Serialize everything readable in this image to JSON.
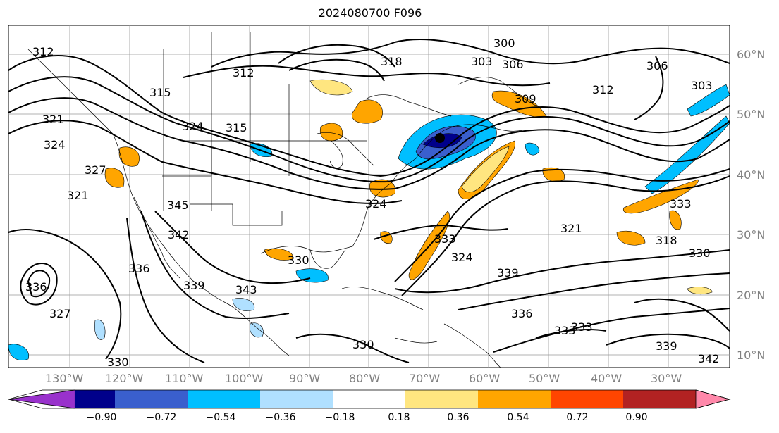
{
  "title": "2024080700 F096",
  "map": {
    "lon_labels": [
      "130°W",
      "120°W",
      "110°W",
      "100°W",
      "90°W",
      "80°W",
      "70°W",
      "60°W",
      "50°W",
      "40°W",
      "30°W"
    ],
    "lat_labels": [
      "60°N",
      "50°N",
      "40°N",
      "30°N",
      "20°N",
      "10°N"
    ],
    "contour_labels": [
      "312",
      "315",
      "318",
      "300",
      "306",
      "303",
      "309",
      "312",
      "306",
      "303",
      "321",
      "324",
      "327",
      "321",
      "315",
      "324",
      "312",
      "345",
      "342",
      "336",
      "339",
      "343",
      "330",
      "336",
      "333",
      "330",
      "336",
      "339",
      "333",
      "339",
      "342",
      "330",
      "327",
      "324",
      "333",
      "324",
      "321",
      "333",
      "318",
      "330"
    ],
    "high_marker": "●"
  },
  "colorbar": {
    "tick_labels": [
      "−0.90",
      "−0.72",
      "−0.54",
      "−0.36",
      "−0.18",
      "0.18",
      "0.36",
      "0.54",
      "0.72",
      "0.90"
    ],
    "colors": [
      "#9932cc",
      "#00008b",
      "#3a5fcd",
      "#00bfff",
      "#b0e0ff",
      "#ffffff",
      "#ffe680",
      "#ffa500",
      "#ff4500",
      "#b22222",
      "#ff88aa"
    ]
  }
}
